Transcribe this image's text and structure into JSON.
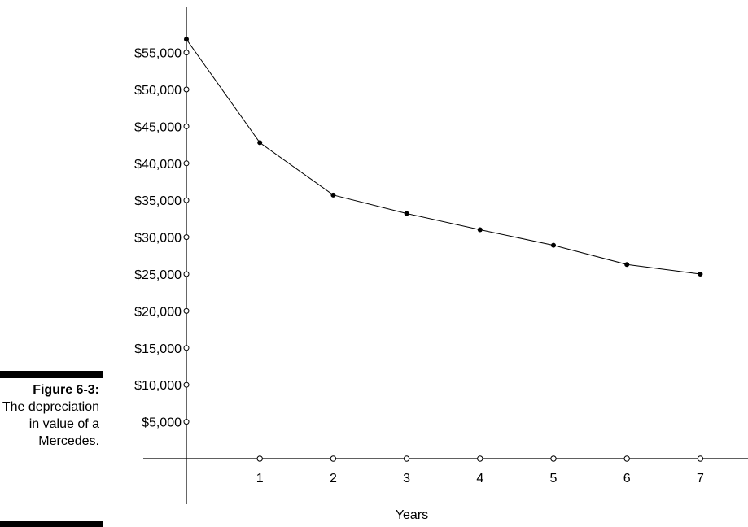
{
  "caption": {
    "label": "Figure 6-3:",
    "text": "The depreciation in value of a Mercedes."
  },
  "chart_data": {
    "type": "line",
    "title": "",
    "xlabel": "Years",
    "ylabel": "",
    "x_ticks": [
      "1",
      "2",
      "3",
      "4",
      "5",
      "6",
      "7"
    ],
    "x_tick_values": [
      1,
      2,
      3,
      4,
      5,
      6,
      7
    ],
    "y_ticks": [
      "$5,000",
      "$10,000",
      "$15,000",
      "$20,000",
      "$25,000",
      "$30,000",
      "$35,000",
      "$40,000",
      "$45,000",
      "$50,000",
      "$55,000"
    ],
    "y_tick_values": [
      5000,
      10000,
      15000,
      20000,
      25000,
      30000,
      35000,
      40000,
      45000,
      50000,
      55000
    ],
    "xlim": [
      0,
      7.8
    ],
    "ylim": [
      0,
      60000
    ],
    "grid": false,
    "legend": "none",
    "series": [
      {
        "x": [
          0,
          1,
          2,
          3,
          4,
          5,
          6,
          7
        ],
        "y": [
          56800,
          42800,
          35700,
          33200,
          31000,
          28900,
          26300,
          25000
        ]
      }
    ]
  }
}
